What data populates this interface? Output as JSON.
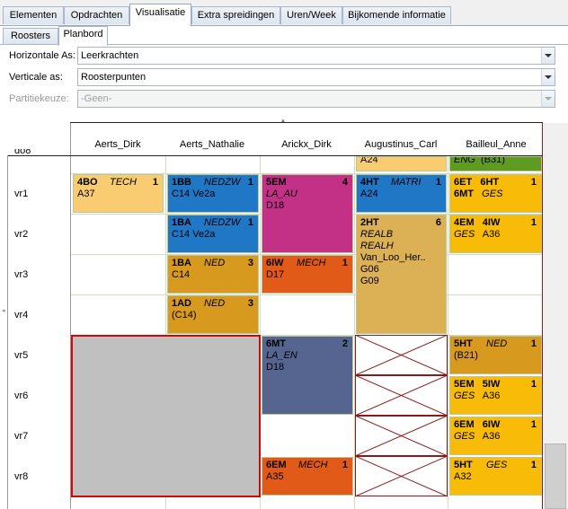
{
  "tabs": [
    "Elementen",
    "Opdrachten",
    "Visualisatie",
    "Extra spreidingen",
    "Uren/Week",
    "Bijkomende informatie"
  ],
  "subtabs": [
    "Roosters",
    "Planbord"
  ],
  "form": {
    "horizontal_label": "Horizontale As:",
    "horizontal_value": "Leerkrachten",
    "vertical_label": "Verticale as:",
    "vertical_value": "Roosterpunten",
    "partition_label": "Partitiekeuze:",
    "partition_value": "-Geen-"
  },
  "columns": [
    "Aerts_Dirk",
    "Aerts_Nathalie",
    "Arickx_Dirk",
    "Augustinus_Carl",
    "Bailleul_Anne"
  ],
  "rows": [
    "do8",
    "vr1",
    "vr2",
    "vr3",
    "vr4",
    "vr5",
    "vr6",
    "vr7",
    "vr8"
  ],
  "blocks": {
    "b1": {
      "t": "4BO",
      "s": "TECH",
      "n": "1",
      "r": "A37"
    },
    "b2": {
      "t": "1BB",
      "s": "NEDZW",
      "n": "1",
      "r": "C14  Ve2a"
    },
    "b3": {
      "t": "1BA",
      "s": "NEDZW",
      "n": "1",
      "r": "C14  Ve2a"
    },
    "b4": {
      "t": "1BA",
      "s": "NED",
      "n": "3",
      "r": "C14"
    },
    "b5": {
      "t": "1AD",
      "s": "NED",
      "n": "3",
      "r": "(C14)"
    },
    "b6": {
      "t": "5EM",
      "s": "LA_AU",
      "n": "4",
      "r": "D18"
    },
    "b7": {
      "t": "6IW",
      "s": "MECH",
      "n": "1",
      "r": "D17"
    },
    "b8": {
      "t": "6MT",
      "s": "LA_EN",
      "n": "2",
      "r": "D18"
    },
    "b9": {
      "t": "6EM",
      "s": "MECH",
      "n": "1",
      "r": "A35"
    },
    "b10": {
      "t": "4HT",
      "s": "MATRI",
      "n": "1",
      "r": "A24"
    },
    "b11": {
      "t": "2HT",
      "s1": "REALB",
      "s2": "REALH",
      "n": "6",
      "l3": "Van_Loo_Her..",
      "l4": "G06",
      "l5": "G09"
    },
    "b12": {
      "t1": "6ET",
      "t2": "6HT",
      "t3": "6MT",
      "s": "GES",
      "n": "1"
    },
    "b13": {
      "t1": "4EM",
      "t2": "4IW",
      "s": "GES",
      "r": "A36",
      "n": "1"
    },
    "b14": {
      "t": "5HT",
      "s": "NED",
      "n": "1",
      "r": "(B21)"
    },
    "b15": {
      "t1": "5EM",
      "t2": "5IW",
      "s": "GES",
      "r": "A36",
      "n": "1"
    },
    "b16": {
      "t1": "6EM",
      "t2": "6IW",
      "s": "GES",
      "r": "A36",
      "n": "1"
    },
    "b17": {
      "t": "5HT",
      "s": "GES",
      "n": "1",
      "r": "A32"
    },
    "top3": "A24",
    "top4s": "ENG",
    "top4r": "(B31)"
  },
  "colors": {
    "orange": "#f7bb08",
    "blue": "#1f77c6",
    "magenta": "#c33186",
    "rust": "#e25a17",
    "gold": "#d89a1e",
    "selection": "#e00000"
  }
}
